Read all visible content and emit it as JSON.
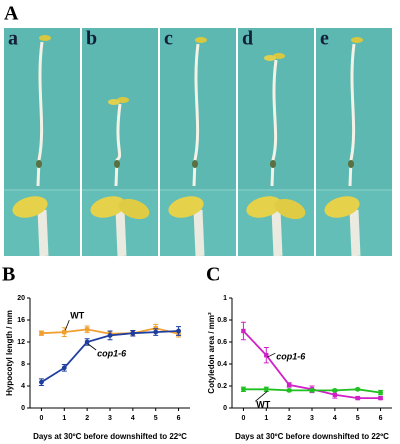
{
  "figure": {
    "panels": [
      "A",
      "B",
      "C"
    ],
    "photo_labels": [
      "a",
      "b",
      "c",
      "d",
      "e"
    ]
  },
  "chart_data": [
    {
      "type": "line",
      "xlabel": "Days at 30ºC before downshifted to 22ºC",
      "ylabel": "Hypocotyl length / mm",
      "x": [
        0,
        1,
        2,
        3,
        4,
        5,
        6
      ],
      "xlim": [
        -0.5,
        6.5
      ],
      "xticks": [
        0,
        1,
        2,
        3,
        4,
        5,
        6
      ],
      "ylim": [
        0,
        20
      ],
      "yticks": [
        0,
        4,
        8,
        12,
        16,
        20
      ],
      "series": [
        {
          "name": "WT",
          "color": "#f0a030",
          "marker": "square",
          "values": [
            13.6,
            13.8,
            14.3,
            13.5,
            13.6,
            14.5,
            13.5
          ],
          "errors": [
            0.4,
            0.8,
            0.6,
            0.5,
            0.5,
            0.7,
            0.6
          ]
        },
        {
          "name": "cop1-6",
          "color": "#1f3fa0",
          "marker": "circle",
          "values": [
            4.7,
            7.3,
            12.0,
            13.2,
            13.6,
            13.8,
            14.0
          ],
          "errors": [
            0.6,
            0.6,
            0.6,
            0.8,
            0.5,
            0.6,
            0.8
          ]
        }
      ]
    },
    {
      "type": "line",
      "xlabel": "Days at 30ºC before downshifted to 22ºC",
      "ylabel": "Cotyledon area / mm²",
      "x": [
        0,
        1,
        2,
        3,
        4,
        5,
        6
      ],
      "xlim": [
        -0.5,
        6.5
      ],
      "xticks": [
        0,
        1,
        2,
        3,
        4,
        5,
        6
      ],
      "ylim": [
        0,
        1
      ],
      "yticks": [
        0,
        0.2,
        0.4,
        0.6,
        0.8,
        1
      ],
      "series": [
        {
          "name": "cop1-6",
          "color": "#d020c8",
          "marker": "square",
          "values": [
            0.7,
            0.48,
            0.21,
            0.17,
            0.12,
            0.09,
            0.09
          ],
          "errors": [
            0.08,
            0.07,
            0.02,
            0.03,
            0.03,
            0.01,
            0.01
          ]
        },
        {
          "name": "WT",
          "color": "#20c020",
          "marker": "circle",
          "values": [
            0.17,
            0.17,
            0.16,
            0.16,
            0.16,
            0.17,
            0.14
          ],
          "errors": [
            0.02,
            0.02,
            0.01,
            0.01,
            0.01,
            0.01,
            0.02
          ]
        }
      ]
    }
  ]
}
